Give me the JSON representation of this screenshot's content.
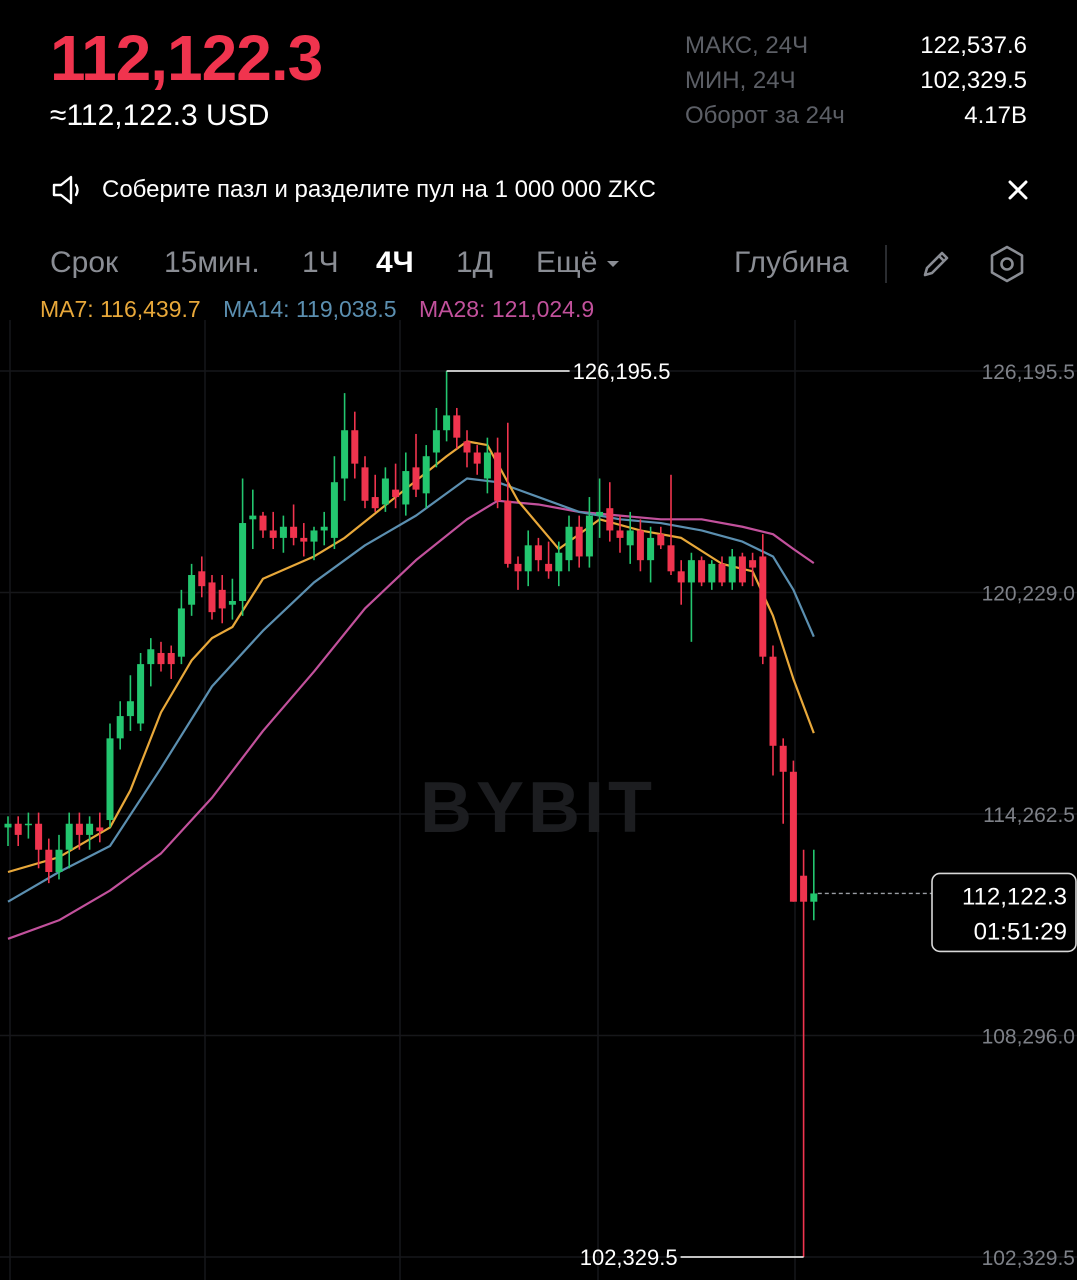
{
  "ticker": {
    "last_price": "112,122.3",
    "last_price_usd": "≈112,122.3 USD",
    "stats": [
      {
        "label": "МАКС, 24Ч",
        "value": "122,537.6"
      },
      {
        "label": "МИН, 24Ч",
        "value": "102,329.5"
      },
      {
        "label": "Оборот за 24ч",
        "value": "4.17B"
      }
    ]
  },
  "banner": {
    "text": "Соберите пазл и разделите пул на 1 000 000 ZKC",
    "icon": "speaker-icon",
    "close_icon": "close-icon"
  },
  "tabs": {
    "items": [
      "Срок",
      "15мин.",
      "1Ч",
      "4Ч",
      "1Д",
      "Ещё"
    ],
    "active": "4Ч",
    "depth_label": "Глубина",
    "tools": [
      "pencil-icon",
      "settings-hex-icon"
    ]
  },
  "indicators": {
    "ma7": {
      "label": "MA7: 116,439.7",
      "color": "#e8a83a"
    },
    "ma14": {
      "label": "MA14: 119,038.5",
      "color": "#5b8fb0"
    },
    "ma28": {
      "label": "MA28: 121,024.9",
      "color": "#c2519c"
    }
  },
  "colors": {
    "up": "#23c66f",
    "down": "#f0344e",
    "background": "#000000",
    "grid": "#16171a"
  },
  "watermark": "BYBIT",
  "chart_data": {
    "type": "candlestick",
    "interval": "4Ч",
    "y_ticks": [
      "126,195.5",
      "120,229.0",
      "114,262.5",
      "108,296.0",
      "102,329.5"
    ],
    "y_tick_values": [
      126195.5,
      120229.0,
      114262.5,
      108296.0,
      102329.5
    ],
    "ylim": [
      100820,
      127540
    ],
    "high_marker": {
      "label": "126,195.5",
      "value": 126195.5
    },
    "low_marker": {
      "label": "102,329.5",
      "value": 102329.5
    },
    "current_price": {
      "label": "112,122.3",
      "countdown": "01:51:29",
      "value": 112122.3
    },
    "candles_ohlc": [
      [
        113900,
        114200,
        113400,
        114000
      ],
      [
        114000,
        114200,
        113400,
        113700
      ],
      [
        114000,
        114300,
        113600,
        114000
      ],
      [
        114000,
        114300,
        112800,
        113300
      ],
      [
        113300,
        113600,
        112400,
        112700
      ],
      [
        112700,
        113700,
        112500,
        113300
      ],
      [
        113300,
        114300,
        112800,
        114000
      ],
      [
        114000,
        114300,
        113300,
        113700
      ],
      [
        113700,
        114200,
        113300,
        114000
      ],
      [
        113900,
        114300,
        113500,
        113800
      ],
      [
        114100,
        116700,
        113900,
        116300
      ],
      [
        116300,
        117300,
        116000,
        116900
      ],
      [
        116900,
        118000,
        116500,
        117300
      ],
      [
        116700,
        118600,
        116500,
        118300
      ],
      [
        118300,
        119000,
        117700,
        118700
      ],
      [
        118600,
        118900,
        118100,
        118300
      ],
      [
        118600,
        118800,
        117900,
        118300
      ],
      [
        118500,
        120300,
        118300,
        119800
      ],
      [
        119900,
        121000,
        119600,
        120700
      ],
      [
        120800,
        121200,
        120100,
        120400
      ],
      [
        120500,
        120700,
        119500,
        119700
      ],
      [
        120300,
        120700,
        119400,
        119800
      ],
      [
        119900,
        120600,
        119500,
        120000
      ],
      [
        120000,
        123300,
        119600,
        122100
      ],
      [
        122200,
        123000,
        121400,
        122300
      ],
      [
        122300,
        122400,
        121700,
        121900
      ],
      [
        121900,
        122400,
        121400,
        121700
      ],
      [
        121700,
        122300,
        121300,
        122000
      ],
      [
        122000,
        122600,
        121500,
        121700
      ],
      [
        121700,
        122100,
        121200,
        121600
      ],
      [
        121600,
        122000,
        121100,
        121900
      ],
      [
        121900,
        122400,
        121500,
        122000
      ],
      [
        121700,
        123900,
        121400,
        123200
      ],
      [
        123300,
        125600,
        122700,
        124600
      ],
      [
        124600,
        125100,
        123300,
        123700
      ],
      [
        123600,
        123900,
        122500,
        122700
      ],
      [
        122800,
        123400,
        122400,
        122500
      ],
      [
        122600,
        123600,
        122400,
        123300
      ],
      [
        123000,
        123700,
        122500,
        122800
      ],
      [
        122600,
        124000,
        122300,
        123500
      ],
      [
        123600,
        124500,
        122800,
        123000
      ],
      [
        122900,
        124200,
        122500,
        123900
      ],
      [
        124000,
        125200,
        123600,
        124600
      ],
      [
        124600,
        126195.5,
        124300,
        125000
      ],
      [
        125000,
        125200,
        124100,
        124400
      ],
      [
        124300,
        124600,
        123600,
        124000
      ],
      [
        124000,
        124200,
        123400,
        123700
      ],
      [
        123300,
        124400,
        122900,
        124000
      ],
      [
        124000,
        124400,
        122500,
        122700
      ],
      [
        122700,
        124800,
        120900,
        121000
      ],
      [
        121000,
        121200,
        120300,
        120800
      ],
      [
        120800,
        121900,
        120400,
        121500
      ],
      [
        121500,
        121700,
        120800,
        121100
      ],
      [
        121000,
        121600,
        120600,
        120800
      ],
      [
        120800,
        121600,
        120400,
        121300
      ],
      [
        121100,
        122300,
        120800,
        122000
      ],
      [
        122000,
        122300,
        120900,
        121200
      ],
      [
        121200,
        122800,
        120900,
        122300
      ],
      [
        122300,
        123300,
        121700,
        122400
      ],
      [
        122500,
        123200,
        121600,
        121900
      ],
      [
        121900,
        122300,
        121300,
        121700
      ],
      [
        121500,
        122400,
        121000,
        121900
      ],
      [
        121900,
        122200,
        120800,
        121100
      ],
      [
        121100,
        122000,
        120500,
        121700
      ],
      [
        121800,
        122000,
        121400,
        121500
      ],
      [
        121500,
        123400,
        120700,
        120800
      ],
      [
        120800,
        121100,
        119900,
        120500
      ],
      [
        120500,
        121300,
        118900,
        121100
      ],
      [
        121100,
        121200,
        120400,
        120500
      ],
      [
        120500,
        121100,
        120300,
        121000
      ],
      [
        121000,
        121200,
        120400,
        120500
      ],
      [
        120500,
        121400,
        120300,
        121200
      ],
      [
        121200,
        121300,
        120400,
        120500
      ],
      [
        121100,
        121300,
        120400,
        120900
      ],
      [
        121200,
        121800,
        118300,
        118500
      ],
      [
        118500,
        118800,
        115300,
        116100
      ],
      [
        116100,
        116300,
        114000,
        115400
      ],
      [
        115400,
        115700,
        111900,
        111900
      ],
      [
        112600,
        113300,
        102329.5,
        111900
      ],
      [
        111900,
        113300,
        111400,
        112122.3
      ]
    ],
    "ma7": [
      [
        0,
        112700
      ],
      [
        5,
        113100
      ],
      [
        10,
        113900
      ],
      [
        12,
        114900
      ],
      [
        15,
        117000
      ],
      [
        18,
        118400
      ],
      [
        20,
        119000
      ],
      [
        22,
        119300
      ],
      [
        25,
        120600
      ],
      [
        30,
        121200
      ],
      [
        33,
        121700
      ],
      [
        38,
        122800
      ],
      [
        43,
        123900
      ],
      [
        45,
        124300
      ],
      [
        47,
        124200
      ],
      [
        50,
        122700
      ],
      [
        54,
        121400
      ],
      [
        58,
        122200
      ],
      [
        62,
        121900
      ],
      [
        66,
        121700
      ],
      [
        70,
        121000
      ],
      [
        73,
        120800
      ],
      [
        75,
        119600
      ],
      [
        77,
        117900
      ],
      [
        79,
        116440
      ]
    ],
    "ma14": [
      [
        0,
        111900
      ],
      [
        5,
        112700
      ],
      [
        10,
        113400
      ],
      [
        15,
        115500
      ],
      [
        20,
        117700
      ],
      [
        25,
        119200
      ],
      [
        30,
        120500
      ],
      [
        35,
        121500
      ],
      [
        40,
        122300
      ],
      [
        45,
        123300
      ],
      [
        48,
        123200
      ],
      [
        52,
        122800
      ],
      [
        56,
        122400
      ],
      [
        60,
        122200
      ],
      [
        64,
        122100
      ],
      [
        68,
        121900
      ],
      [
        72,
        121600
      ],
      [
        75,
        121200
      ],
      [
        77,
        120300
      ],
      [
        79,
        119040
      ]
    ],
    "ma28": [
      [
        0,
        110900
      ],
      [
        5,
        111400
      ],
      [
        10,
        112200
      ],
      [
        15,
        113200
      ],
      [
        20,
        114700
      ],
      [
        25,
        116500
      ],
      [
        30,
        118100
      ],
      [
        35,
        119800
      ],
      [
        40,
        121100
      ],
      [
        45,
        122200
      ],
      [
        48,
        122700
      ],
      [
        52,
        122600
      ],
      [
        56,
        122400
      ],
      [
        60,
        122300
      ],
      [
        64,
        122200
      ],
      [
        68,
        122200
      ],
      [
        72,
        122000
      ],
      [
        75,
        121800
      ],
      [
        77,
        121400
      ],
      [
        79,
        121020
      ]
    ]
  }
}
